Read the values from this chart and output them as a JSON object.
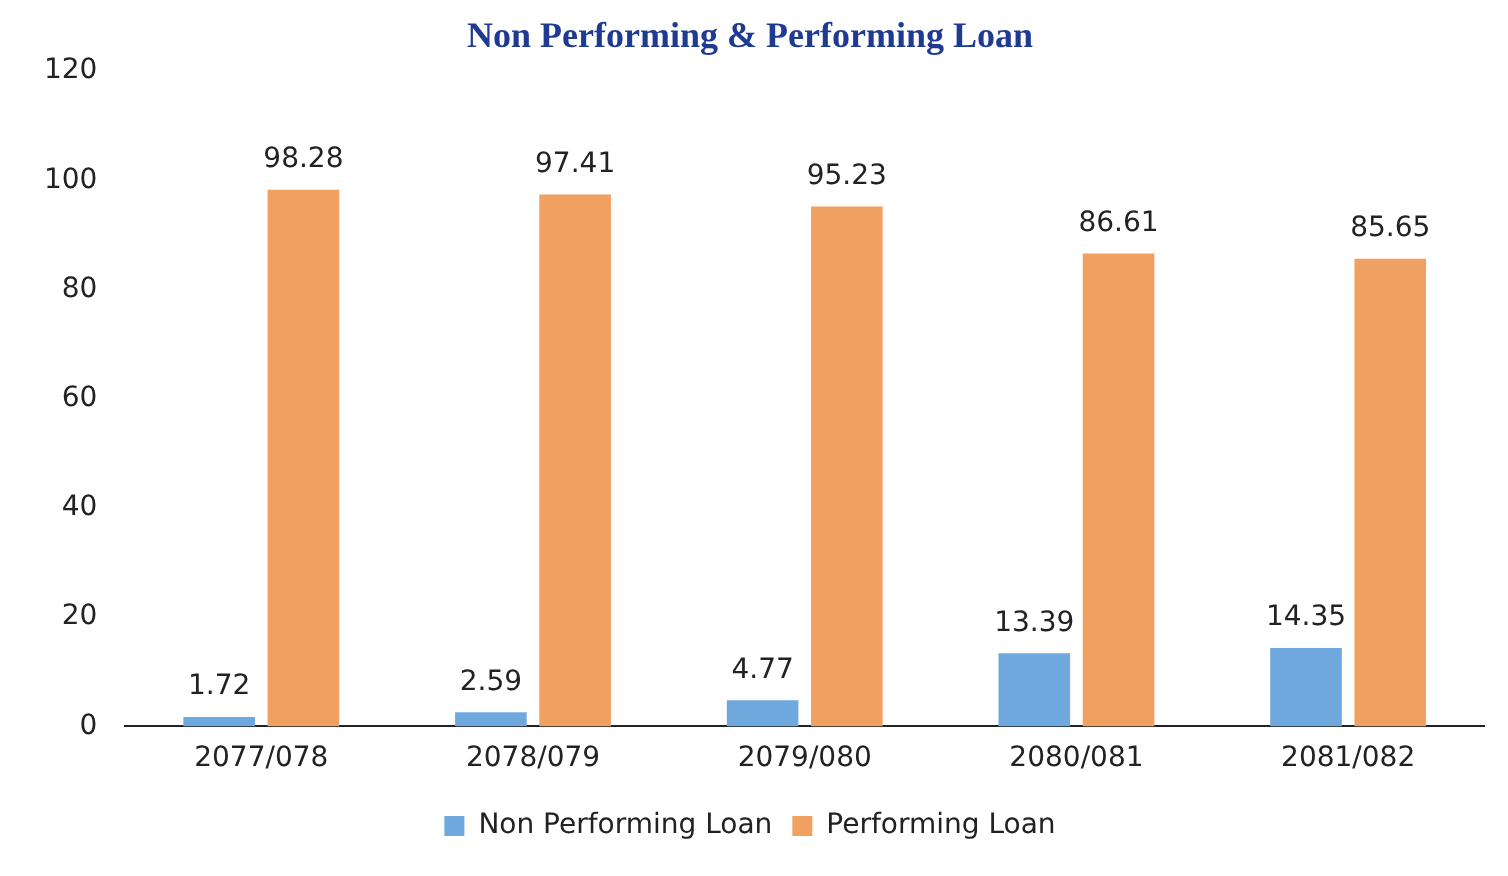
{
  "chart_data": {
    "type": "bar",
    "title": "Non Performing & Performing Loan",
    "categories": [
      "2077/078",
      "2078/079",
      "2079/080",
      "2080/081",
      "2081/082"
    ],
    "series": [
      {
        "name": "Non Performing Loan",
        "color": "#6fa8dc",
        "values": [
          1.72,
          2.59,
          4.77,
          13.39,
          14.35
        ]
      },
      {
        "name": "Performing Loan",
        "color": "#f0a060",
        "values": [
          98.28,
          97.41,
          95.23,
          86.61,
          85.65
        ]
      }
    ],
    "ylim": [
      0,
      120
    ],
    "yticks": [
      0,
      20,
      40,
      60,
      80,
      100,
      120
    ],
    "grid": false,
    "legend": "bottom",
    "data_labels": true
  }
}
